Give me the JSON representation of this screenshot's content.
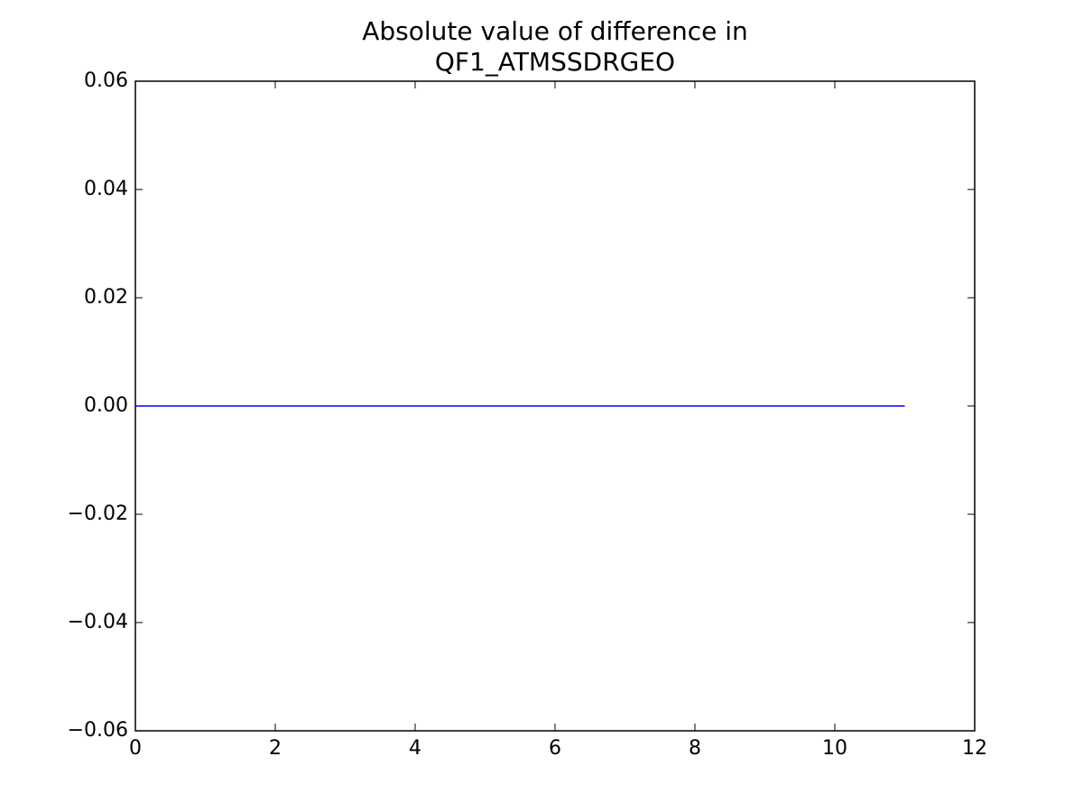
{
  "chart_data": {
    "type": "line",
    "title": "Absolute value of difference in\nQF1_ATMSSDRGEO",
    "x": [
      0,
      1,
      2,
      3,
      4,
      5,
      6,
      7,
      8,
      9,
      10,
      11
    ],
    "series": [
      {
        "color": "#0000ff",
        "values": [
          0,
          0,
          0,
          0,
          0,
          0,
          0,
          0,
          0,
          0,
          0,
          0
        ]
      }
    ],
    "xlim": [
      0,
      12
    ],
    "xticks": [
      0,
      2,
      4,
      6,
      8,
      10,
      12
    ],
    "ylim": [
      -0.06,
      0.06
    ],
    "yticks": [
      {
        "value": -0.06,
        "label": "−0.06"
      },
      {
        "value": -0.04,
        "label": "−0.04"
      },
      {
        "value": -0.02,
        "label": "−0.02"
      },
      {
        "value": 0,
        "label": "0.00"
      },
      0.02,
      0.04,
      0.06
    ],
    "grid": false
  }
}
